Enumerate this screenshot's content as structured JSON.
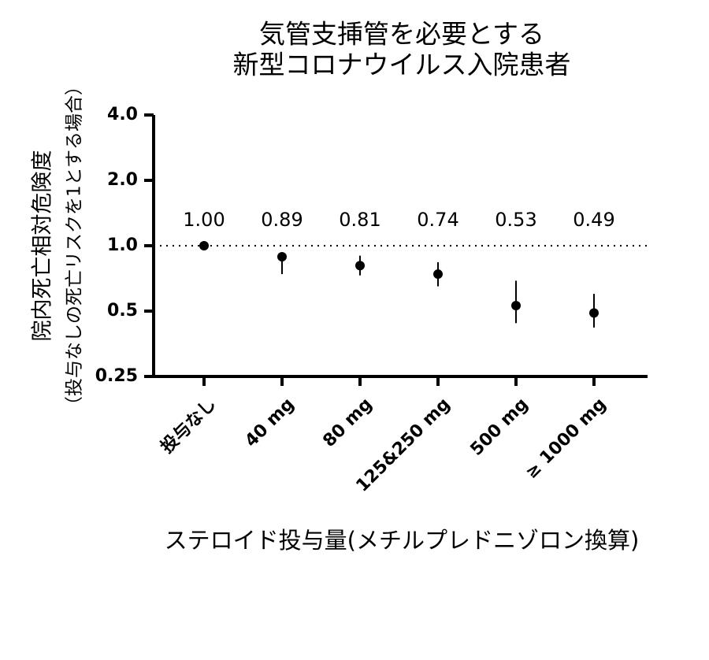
{
  "chart_data": {
    "type": "errorbar",
    "title": [
      "気管支挿管を必要とする",
      "新型コロナウイルス入院患者"
    ],
    "y_label": [
      "院内死亡相対危険度",
      "（投与なしの死亡リスクを1とする場合）"
    ],
    "x_label": "ステロイド投与量(メチルプレドニゾロン換算)",
    "categories": [
      "投与なし",
      "40 mg",
      "80 mg",
      "125&250 mg",
      "500 mg",
      "≥ 1000 mg"
    ],
    "values": [
      1.0,
      0.89,
      0.81,
      0.74,
      0.53,
      0.49
    ],
    "value_labels": [
      "1.00",
      "0.89",
      "0.81",
      "0.74",
      "0.53",
      "0.49"
    ],
    "ci_lower": [
      null,
      0.74,
      0.73,
      0.65,
      0.44,
      0.42
    ],
    "ci_upper": [
      null,
      0.93,
      0.9,
      0.84,
      0.69,
      0.6
    ],
    "color": "#000000",
    "yscale": "log2",
    "ylim": [
      0.25,
      4
    ],
    "yticks": [
      0.25,
      0.5,
      {
        "value": 1,
        "label": "1.0"
      },
      {
        "value": 2,
        "label": "2.0"
      },
      {
        "value": 4,
        "label": "4.0"
      }
    ],
    "reference_line": 1
  }
}
